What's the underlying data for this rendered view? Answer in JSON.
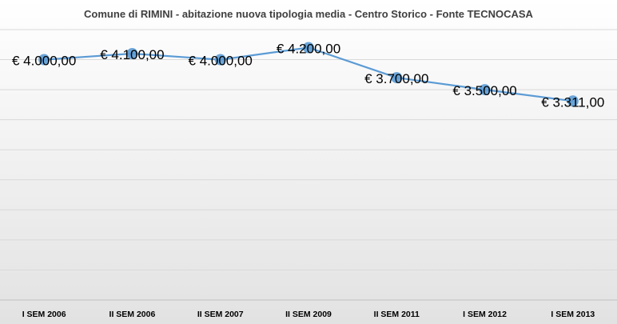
{
  "chart_data": {
    "type": "line",
    "title": "Comune di RIMINI - abitazione nuova tipologia media - Centro Storico  - Fonte TECNOCASA",
    "categories": [
      "I SEM 2006",
      "II SEM 2006",
      "II SEM 2007",
      "II SEM 2009",
      "II SEM 2011",
      "I SEM 2012",
      "I SEM 2013"
    ],
    "series": [
      {
        "values": [
          4000,
          4100,
          4000,
          4200,
          3700,
          3500,
          3311
        ],
        "data_labels": [
          "€ 4.000,00",
          "€ 4.100,00",
          "€ 4.000,00",
          "€ 4.200,00",
          "€ 3.700,00",
          "€ 3.500,00",
          "€ 3.311,00"
        ]
      }
    ],
    "ylim": [
      0,
      4500
    ],
    "y_major_step": 500,
    "grid": true,
    "y_axis_labels_shown": false,
    "line_color": "#5b9bd5",
    "marker_color": "#5b9bd5",
    "grid_color": "#d9d9d9",
    "background_gradient": [
      "#ffffff",
      "#e2e2e2"
    ]
  }
}
